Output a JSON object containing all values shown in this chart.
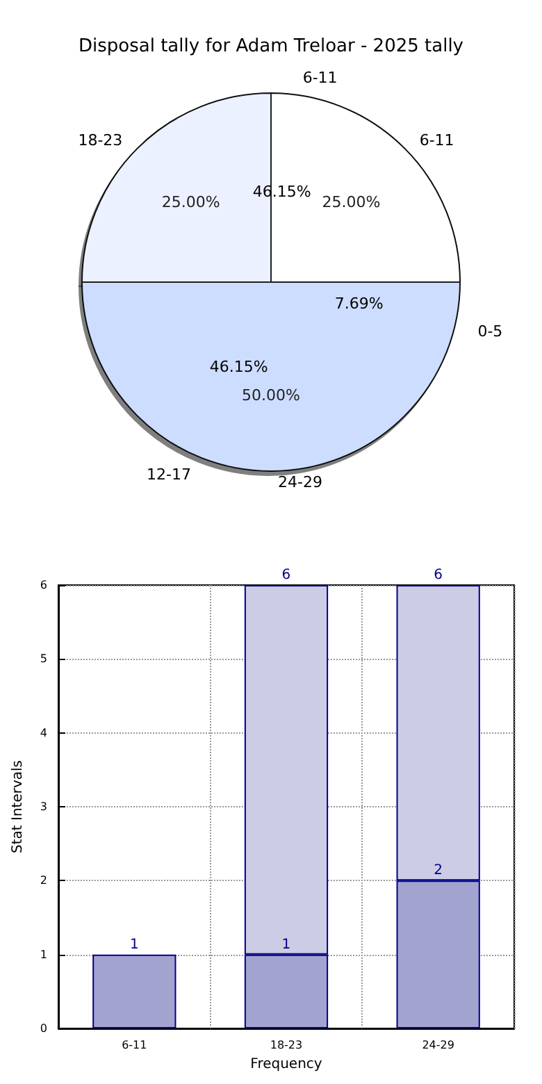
{
  "chart_data": [
    {
      "type": "pie",
      "title": "Disposal tally for Adam Treloar - 2025 tally",
      "categories": [
        "6-11",
        "18-23",
        "24-29"
      ],
      "values": [
        25,
        25,
        50
      ],
      "value_labels": [
        "25.00%",
        "25.00%",
        "50.00%"
      ],
      "colors": [
        "#ffffff",
        "#eaf0ff",
        "#c6d9ff"
      ]
    },
    {
      "type": "pie",
      "categories": [
        "6-11",
        "12-17",
        "0-5"
      ],
      "values": [
        46.15,
        46.15,
        7.69
      ],
      "value_labels": [
        "46.15%",
        "46.15%",
        "7.69%"
      ],
      "colors": [
        "#ffffff",
        "#ffffff",
        "#ffffff"
      ]
    },
    {
      "type": "bar",
      "categories": [
        "6-11",
        "18-23",
        "24-29"
      ],
      "xlabel": "Frequency",
      "ylabel": "Stat Intervals",
      "ylim": [
        0,
        6
      ],
      "yticks": [
        0,
        1,
        2,
        3,
        4,
        5,
        6
      ],
      "grid": true,
      "stacked": true,
      "totals": [
        null,
        "6",
        "6"
      ],
      "series": [
        {
          "color": "#a3a3d0",
          "values": [
            1,
            1,
            2
          ],
          "value_labels": [
            "1",
            "1",
            "2"
          ]
        },
        {
          "color": "#cccce4",
          "values": [
            null,
            5,
            4
          ]
        }
      ]
    }
  ]
}
